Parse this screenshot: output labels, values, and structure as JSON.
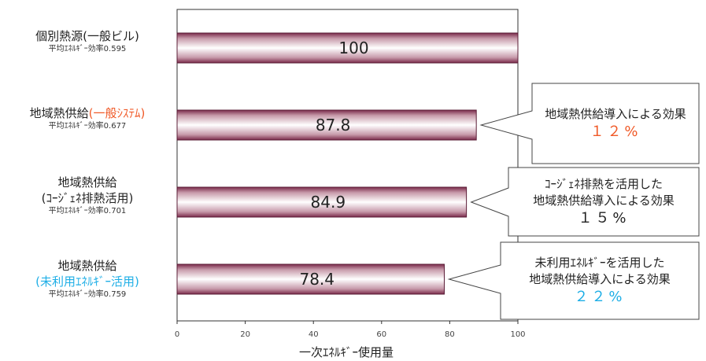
{
  "chart_data": {
    "type": "bar",
    "orientation": "horizontal",
    "categories": [
      {
        "line1": "個別熱源(一般ビル)",
        "line2": "",
        "sub": "平均ｴﾈﾙｷﾞｰ効率0.595"
      },
      {
        "line1": "地域熱供給",
        "line1_highlight": "(一般ｼｽﾃﾑ)",
        "line2": "",
        "sub": "平均ｴﾈﾙｷﾞｰ効率0.677"
      },
      {
        "line1": "地域熱供給",
        "line2": "(ｺｰｼﾞｪﾈ排熱活用)",
        "sub": "平均ｴﾈﾙｷﾞｰ効率0.701"
      },
      {
        "line1": "地域熱供給",
        "line2_highlight": "(未利用ｴﾈﾙｷﾞｰ活用)",
        "sub": "平均ｴﾈﾙｷﾞｰ効率0.759"
      }
    ],
    "values": [
      100,
      87.8,
      84.9,
      78.4
    ],
    "value_labels": [
      "100",
      "87.8",
      "84.9",
      "78.4"
    ],
    "xlabel": "一次ｴﾈﾙｷﾞｰ使用量",
    "xlim": [
      0,
      100
    ],
    "xticks": [
      "0",
      "20",
      "40",
      "60",
      "80",
      "100"
    ],
    "grid": false,
    "callouts": [
      {
        "bar": 1,
        "lines": [
          "地域熱供給導入による効果"
        ],
        "pct": "１２%",
        "pct_color": "#f05a28"
      },
      {
        "bar": 2,
        "lines": [
          "ｺｰｼﾞｪﾈ排熱を活用した",
          "地域熱供給導入による効果"
        ],
        "pct": "１５%",
        "pct_color": "#222222"
      },
      {
        "bar": 3,
        "lines": [
          "未利用ｴﾈﾙｷﾞｰを活用した",
          "地域熱供給導入による効果"
        ],
        "pct": "２２%",
        "pct_color": "#1eaee6"
      }
    ],
    "colors": {
      "bar_dark": "#7a2a4a",
      "bar_light": "#ffffff",
      "accent_orange": "#f05a28",
      "accent_cyan": "#1eaee6"
    }
  }
}
